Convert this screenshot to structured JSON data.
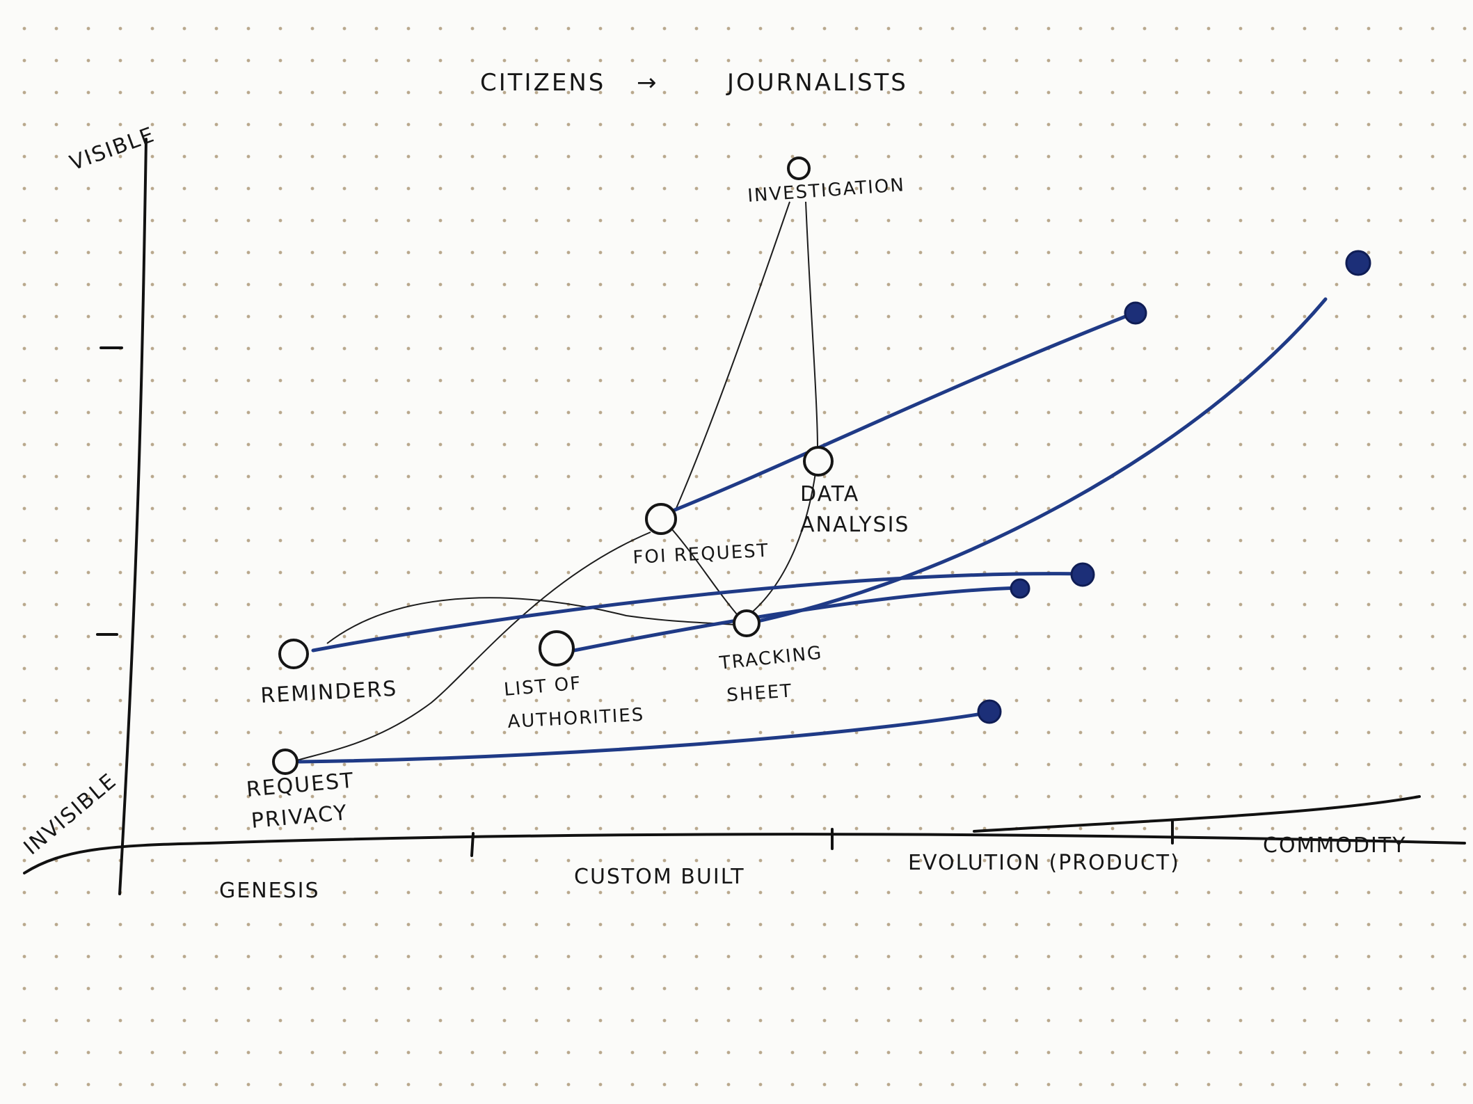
{
  "title": {
    "left": "CITIZENS",
    "arrow": "→",
    "right": "JOURNALISTS"
  },
  "y_axis": {
    "top_label": "VISIBLE",
    "bottom_label": "INVISIBLE"
  },
  "x_axis": {
    "stages": [
      "GENESIS",
      "CUSTOM BUILT",
      "EVOLUTION (PRODUCT)",
      "COMMODITY"
    ]
  },
  "nodes": {
    "investigation": "INVESTIGATION",
    "data_analysis_line1": "DATA",
    "data_analysis_line2": "ANALYSIS",
    "foi_request": "FOI REQUEST",
    "tracking_sheet_line1": "TRACKING",
    "tracking_sheet_line2": "SHEET",
    "reminders": "REMINDERS",
    "list_of_authorities_line1": "LIST OF",
    "list_of_authorities_line2": "AUTHORITIES",
    "request_privacy_line1": "REQUEST",
    "request_privacy_line2": "PRIVACY"
  },
  "colors": {
    "ink": "#151515",
    "evolution_ink": "#1f3a86",
    "paper": "#fbfbf9",
    "grid_dot": "#b9a88d"
  }
}
